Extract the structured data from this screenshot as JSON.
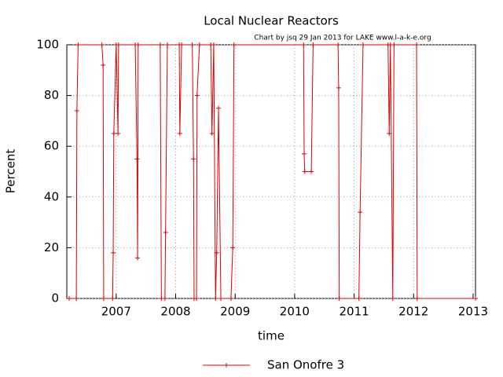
{
  "chart_data": {
    "type": "line",
    "title": "Local Nuclear Reactors",
    "subtitle": "Chart by jsq 29 Jan 2013 for LAKE www.l-a-k-e.org",
    "x_label": "time",
    "y_label": "Percent",
    "x": [
      2006.21,
      2006.33,
      2006.34,
      2006.36,
      2006.76,
      2006.78,
      2006.79,
      2006.94,
      2006.95,
      2006.96,
      2007.0,
      2007.03,
      2007.04,
      2007.32,
      2007.35,
      2007.36,
      2007.37,
      2007.74,
      2007.76,
      2007.82,
      2007.83,
      2007.86,
      2008.06,
      2008.07,
      2008.1,
      2008.28,
      2008.3,
      2008.31,
      2008.35,
      2008.36,
      2008.4,
      2008.59,
      2008.61,
      2008.64,
      2008.67,
      2008.69,
      2008.72,
      2008.76,
      2008.93,
      2008.96,
      2008.98,
      2010.15,
      2010.16,
      2010.17,
      2010.28,
      2010.31,
      2010.73,
      2010.74,
      2010.75,
      2011.08,
      2011.1,
      2011.15,
      2011.57,
      2011.59,
      2011.61,
      2011.65,
      2011.67,
      2012.05,
      2012.06,
      2013.04
    ],
    "series": [
      {
        "name": "San Onofre 3",
        "color": "#dd0000",
        "values": [
          0,
          0,
          74,
          100,
          100,
          92,
          0,
          0,
          18,
          65,
          100,
          65,
          100,
          100,
          55,
          16,
          100,
          100,
          0,
          0,
          26,
          100,
          100,
          65,
          100,
          100,
          55,
          0,
          0,
          80,
          100,
          100,
          65,
          100,
          0,
          18,
          75,
          0,
          0,
          20,
          100,
          100,
          57,
          50,
          50,
          100,
          100,
          83,
          0,
          0,
          34,
          100,
          100,
          65,
          100,
          0,
          100,
          100,
          0,
          0
        ]
      }
    ],
    "xlim": [
      2006.17,
      2013.04
    ],
    "xticks": [
      2007,
      2008,
      2009,
      2010,
      2011,
      2012,
      2013
    ],
    "ylim": [
      0,
      100
    ],
    "yticks": [
      0,
      20,
      40,
      60,
      80,
      100
    ],
    "grid": true
  }
}
